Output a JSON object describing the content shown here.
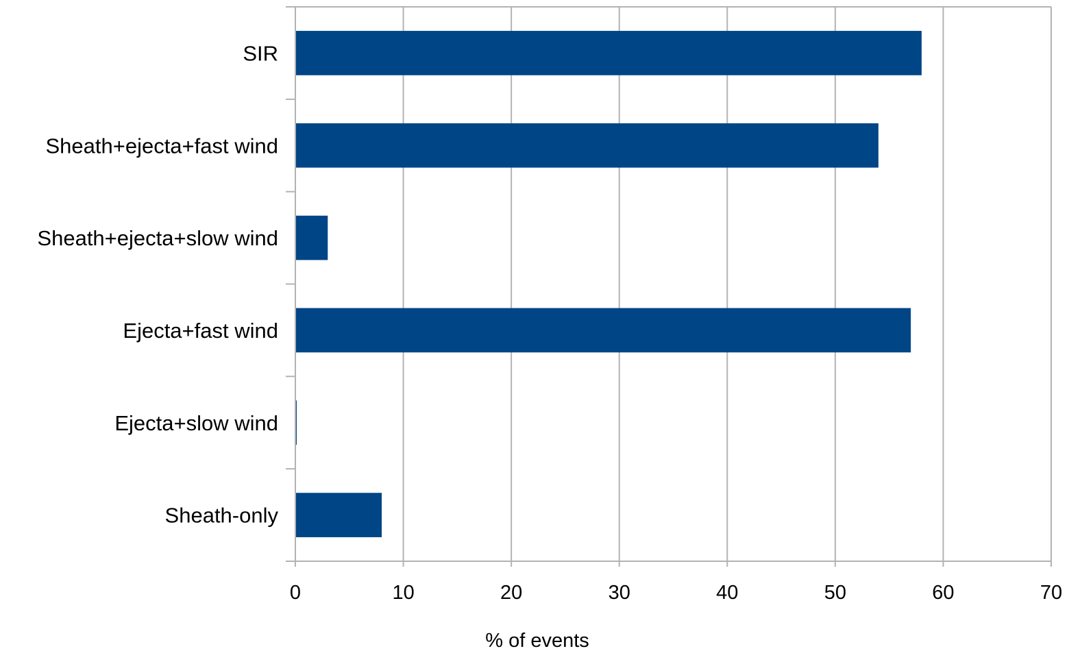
{
  "chart_data": {
    "type": "bar",
    "orientation": "horizontal",
    "categories": [
      "SIR",
      "Sheath+ejecta+fast wind",
      "Sheath+ejecta+slow wind",
      "Ejecta+fast wind",
      "Ejecta+slow wind",
      "Sheath-only"
    ],
    "values": [
      58,
      54,
      3,
      57,
      0,
      8
    ],
    "xlabel": "% of events",
    "ylabel": "",
    "title": "",
    "xlim": [
      0,
      70
    ],
    "xticks": [
      "0",
      "10",
      "20",
      "30",
      "40",
      "50",
      "60",
      "70"
    ],
    "grid": true,
    "bar_color": "#004586",
    "grid_color": "#b3b3b3"
  }
}
